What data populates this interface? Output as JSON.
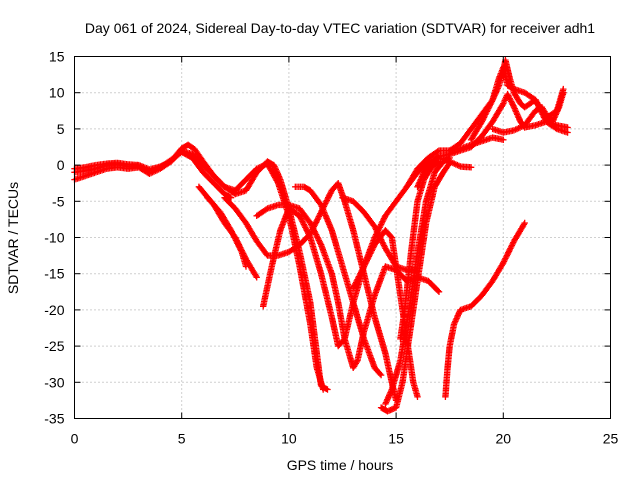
{
  "chart_data": {
    "type": "scatter",
    "title": "Day 061 of 2024, Sidereal Day-to-day VTEC variation (SDTVAR) for receiver adh1",
    "xlabel": "GPS time / hours",
    "ylabel": "SDTVAR / TECUs",
    "xlim": [
      0,
      25
    ],
    "ylim": [
      -35,
      15
    ],
    "xticks": [
      0,
      5,
      10,
      15,
      20,
      25
    ],
    "yticks": [
      -35,
      -30,
      -25,
      -20,
      -15,
      -10,
      -5,
      0,
      5,
      10,
      15
    ],
    "grid": true,
    "marker": "plus",
    "color": "#ff0000",
    "series": [
      {
        "points": [
          [
            0,
            -0.5
          ],
          [
            0.5,
            -0.3
          ],
          [
            1,
            0
          ],
          [
            1.5,
            0.2
          ],
          [
            2,
            0.3
          ],
          [
            2.5,
            0.1
          ],
          [
            3,
            0
          ],
          [
            3.5,
            -0.6
          ],
          [
            4,
            -0.2
          ],
          [
            4.5,
            0.5
          ],
          [
            5,
            2.3
          ],
          [
            5.3,
            2.8
          ],
          [
            5.6,
            2.2
          ],
          [
            6,
            0.5
          ],
          [
            6.5,
            -1.5
          ],
          [
            7,
            -3
          ],
          [
            7.5,
            -4
          ],
          [
            8,
            -3.5
          ],
          [
            8.5,
            -1
          ],
          [
            9,
            0.5
          ],
          [
            9.3,
            0
          ],
          [
            9.6,
            -2
          ],
          [
            10,
            -6
          ],
          [
            10.5,
            -12
          ],
          [
            11,
            -19
          ],
          [
            11.3,
            -26
          ],
          [
            11.5,
            -30.5
          ],
          [
            11.8,
            -31
          ]
        ]
      },
      {
        "points": [
          [
            0,
            -2
          ],
          [
            0.5,
            -1.5
          ],
          [
            1,
            -1
          ],
          [
            1.5,
            -0.5
          ],
          [
            2,
            -0.3
          ],
          [
            2.5,
            -0.5
          ],
          [
            3,
            -0.3
          ],
          [
            3.5,
            -1.2
          ],
          [
            4,
            -0.5
          ],
          [
            4.5,
            0.5
          ],
          [
            5,
            2
          ],
          [
            5.5,
            1.5
          ],
          [
            6,
            0
          ],
          [
            6.5,
            -1.5
          ],
          [
            7,
            -3
          ],
          [
            7.5,
            -3.5
          ],
          [
            8,
            -2
          ],
          [
            8.5,
            -0.5
          ],
          [
            9,
            0.2
          ],
          [
            9.5,
            -2.5
          ],
          [
            10,
            -7
          ],
          [
            10.5,
            -14
          ],
          [
            11,
            -22
          ],
          [
            11.3,
            -28
          ],
          [
            11.6,
            -31
          ]
        ]
      },
      {
        "points": [
          [
            0,
            -1
          ],
          [
            0.5,
            -0.8
          ],
          [
            1,
            -0.5
          ],
          [
            1.5,
            0
          ],
          [
            2,
            0.1
          ],
          [
            2.5,
            -0.2
          ],
          [
            3,
            -0.1
          ],
          [
            3.5,
            -0.8
          ],
          [
            4,
            -0.3
          ],
          [
            4.5,
            0.7
          ],
          [
            5,
            1.8
          ],
          [
            5.5,
            1
          ],
          [
            6,
            -1
          ],
          [
            6.5,
            -2.5
          ],
          [
            7,
            -4
          ],
          [
            7.3,
            -4.5
          ]
        ]
      },
      {
        "points": [
          [
            5.8,
            -3
          ],
          [
            6.5,
            -5.5
          ],
          [
            7,
            -8
          ],
          [
            7.5,
            -10
          ],
          [
            8,
            -13
          ],
          [
            8.5,
            -15.5
          ]
        ]
      },
      {
        "points": [
          [
            6.2,
            -4.5
          ],
          [
            6.8,
            -6.5
          ],
          [
            7.3,
            -9
          ],
          [
            7.8,
            -12
          ],
          [
            8,
            -14
          ]
        ]
      },
      {
        "points": [
          [
            7,
            -4.5
          ],
          [
            7.5,
            -6
          ],
          [
            8,
            -8
          ],
          [
            8.5,
            -10.5
          ],
          [
            9,
            -12.5
          ],
          [
            9.5,
            -12.5
          ],
          [
            10,
            -12
          ],
          [
            10.5,
            -11
          ],
          [
            11,
            -9.5
          ],
          [
            11.5,
            -6.5
          ],
          [
            12,
            -3.5
          ],
          [
            12.3,
            -2.5
          ],
          [
            12.6,
            -5
          ],
          [
            13,
            -9
          ],
          [
            13.5,
            -15
          ],
          [
            14,
            -21
          ],
          [
            14.5,
            -26
          ],
          [
            14.8,
            -30
          ],
          [
            15,
            -32.5
          ]
        ]
      },
      {
        "points": [
          [
            8.5,
            -7
          ],
          [
            9,
            -6
          ],
          [
            9.5,
            -5.5
          ],
          [
            10,
            -5.5
          ],
          [
            10.5,
            -6
          ],
          [
            11,
            -8
          ],
          [
            11.5,
            -11
          ],
          [
            12,
            -15
          ],
          [
            12.3,
            -19
          ],
          [
            12.6,
            -24
          ],
          [
            13,
            -28
          ],
          [
            13.2,
            -27
          ],
          [
            13.5,
            -23
          ],
          [
            14,
            -18
          ],
          [
            14.5,
            -14
          ],
          [
            15,
            -14.5
          ],
          [
            15.5,
            -16
          ],
          [
            16,
            -15.5
          ],
          [
            16.5,
            -16
          ],
          [
            17,
            -17.5
          ]
        ]
      },
      {
        "points": [
          [
            10.3,
            -3
          ],
          [
            10.7,
            -3
          ],
          [
            11,
            -3.5
          ],
          [
            11.5,
            -5.5
          ],
          [
            12,
            -9
          ],
          [
            12.5,
            -14
          ],
          [
            13,
            -19
          ],
          [
            13.5,
            -24
          ],
          [
            14,
            -28
          ],
          [
            14.3,
            -29
          ]
        ]
      },
      {
        "points": [
          [
            8.8,
            -19.5
          ],
          [
            9.2,
            -14
          ],
          [
            9.6,
            -9
          ],
          [
            10,
            -6
          ],
          [
            10.5,
            -7
          ],
          [
            11,
            -10
          ],
          [
            11.5,
            -15
          ],
          [
            12,
            -21
          ],
          [
            12.3,
            -25
          ],
          [
            12.6,
            -24
          ],
          [
            13,
            -19
          ],
          [
            13.5,
            -14
          ],
          [
            14,
            -10
          ],
          [
            14.5,
            -7
          ],
          [
            15,
            -5
          ],
          [
            15.5,
            -3
          ],
          [
            16,
            -1
          ],
          [
            16.5,
            0.5
          ],
          [
            17,
            1
          ],
          [
            17.5,
            0.5
          ],
          [
            18,
            -0.2
          ],
          [
            18.5,
            -0.3
          ]
        ]
      },
      {
        "points": [
          [
            12.5,
            -4.5
          ],
          [
            13,
            -5
          ],
          [
            13.5,
            -6.5
          ],
          [
            14,
            -8.5
          ],
          [
            14.5,
            -11.5
          ],
          [
            15,
            -14
          ],
          [
            15.5,
            -14.5
          ],
          [
            16,
            -14.5
          ]
        ]
      },
      {
        "points": [
          [
            13,
            -17
          ],
          [
            13.5,
            -14
          ],
          [
            14,
            -11
          ],
          [
            14.5,
            -9
          ],
          [
            14.8,
            -10
          ],
          [
            15,
            -14
          ],
          [
            15.3,
            -20
          ],
          [
            15.6,
            -26
          ],
          [
            15.8,
            -30
          ],
          [
            16,
            -32
          ]
        ]
      },
      {
        "points": [
          [
            14.3,
            -33.5
          ],
          [
            14.6,
            -34
          ],
          [
            15,
            -33.5
          ],
          [
            15.3,
            -30
          ],
          [
            15.6,
            -24
          ],
          [
            16,
            -16
          ],
          [
            16.4,
            -8
          ],
          [
            16.8,
            -3
          ],
          [
            17.2,
            -1
          ],
          [
            17.5,
            0.3
          ]
        ]
      },
      {
        "points": [
          [
            14.5,
            -33
          ],
          [
            14.8,
            -31
          ],
          [
            15.2,
            -27
          ],
          [
            15.6,
            -20
          ],
          [
            16,
            -12
          ],
          [
            16.4,
            -5
          ],
          [
            16.8,
            -1
          ],
          [
            17.2,
            0.5
          ],
          [
            17.5,
            1
          ]
        ]
      },
      {
        "points": [
          [
            15.2,
            -24
          ],
          [
            15.4,
            -20
          ],
          [
            15.7,
            -12
          ],
          [
            16,
            -5
          ],
          [
            16.3,
            -2
          ],
          [
            16.6,
            -0.5
          ],
          [
            17,
            0.5
          ]
        ]
      },
      {
        "points": [
          [
            15.5,
            -3
          ],
          [
            16,
            -0.5
          ],
          [
            16.5,
            1
          ],
          [
            17,
            2
          ],
          [
            17.5,
            2
          ],
          [
            18,
            2.3
          ],
          [
            18.5,
            2.8
          ],
          [
            19,
            3.3
          ],
          [
            19.5,
            3.8
          ],
          [
            20,
            3.5
          ]
        ]
      },
      {
        "points": [
          [
            16,
            -3
          ],
          [
            16.3,
            -1
          ],
          [
            16.7,
            0.5
          ],
          [
            17,
            1.2
          ],
          [
            17.5,
            1.5
          ],
          [
            18,
            2
          ],
          [
            18.5,
            2.5
          ],
          [
            19,
            4
          ],
          [
            19.5,
            6
          ],
          [
            20,
            8.5
          ],
          [
            20.2,
            9.8
          ],
          [
            20.5,
            8
          ],
          [
            20.8,
            6
          ],
          [
            21,
            5.2
          ],
          [
            21.5,
            5.5
          ],
          [
            22,
            6
          ],
          [
            22.5,
            5.5
          ],
          [
            23,
            5.2
          ]
        ]
      },
      {
        "points": [
          [
            17.5,
            2
          ],
          [
            18,
            3
          ],
          [
            18.5,
            5
          ],
          [
            19,
            7
          ],
          [
            19.5,
            9
          ],
          [
            19.8,
            11
          ],
          [
            20,
            13
          ],
          [
            20.1,
            14.5
          ],
          [
            20.3,
            12
          ],
          [
            20.5,
            10
          ],
          [
            20.8,
            8.5
          ],
          [
            21,
            8
          ],
          [
            21.5,
            9
          ],
          [
            22,
            6.5
          ],
          [
            22.5,
            7.5
          ],
          [
            22.8,
            10.5
          ]
        ]
      },
      {
        "points": [
          [
            18.5,
            3.5
          ],
          [
            19,
            6
          ],
          [
            19.5,
            9
          ],
          [
            19.8,
            12
          ],
          [
            20,
            13.5
          ],
          [
            20.2,
            11
          ],
          [
            20.5,
            10.5
          ],
          [
            21,
            10
          ],
          [
            21.5,
            9
          ],
          [
            22,
            6
          ],
          [
            22.5,
            5
          ],
          [
            23,
            4.5
          ]
        ]
      },
      {
        "points": [
          [
            19.5,
            5
          ],
          [
            20,
            4.5
          ],
          [
            20.5,
            4.8
          ],
          [
            21,
            5.5
          ],
          [
            21.5,
            7.5
          ],
          [
            21.8,
            8
          ],
          [
            22,
            7
          ],
          [
            22.3,
            6
          ],
          [
            22.6,
            8
          ],
          [
            22.8,
            10
          ]
        ]
      },
      {
        "points": [
          [
            17.3,
            -32
          ],
          [
            17.4,
            -28
          ],
          [
            17.5,
            -25
          ],
          [
            17.7,
            -22
          ],
          [
            18,
            -20
          ],
          [
            18.5,
            -19.5
          ],
          [
            19,
            -18
          ],
          [
            19.5,
            -16
          ],
          [
            20,
            -13.5
          ],
          [
            20.5,
            -10.5
          ],
          [
            21,
            -8
          ]
        ]
      }
    ]
  }
}
